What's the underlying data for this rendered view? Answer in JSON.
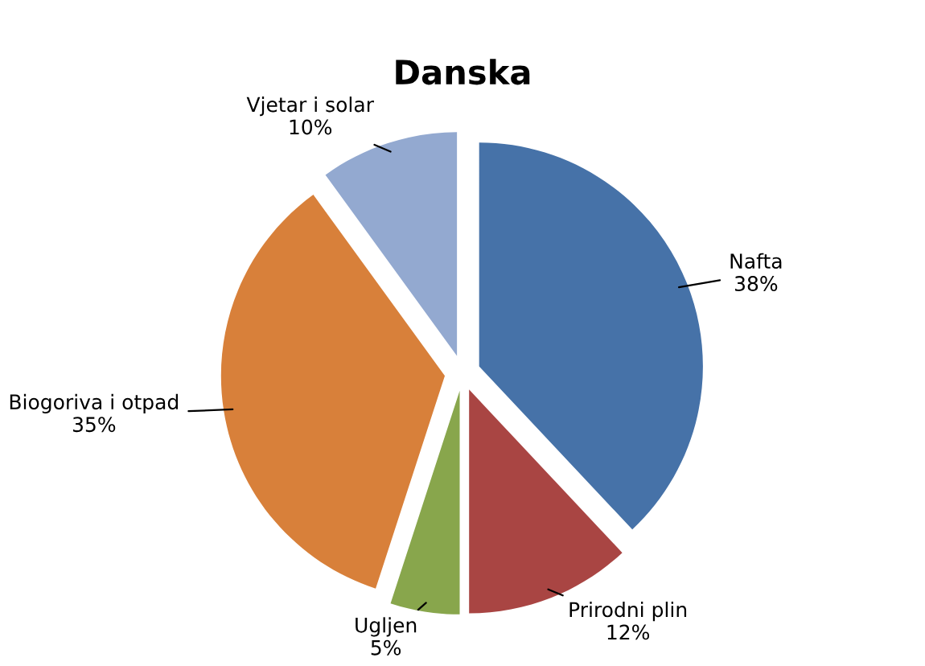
{
  "chart_data": {
    "type": "pie",
    "title": "Danska",
    "categories": [
      "Nafta",
      "Prirodni plin",
      "Ugljen",
      "Biogoriva i otpad",
      "Vjetar i solar"
    ],
    "values": [
      38,
      12,
      5,
      35,
      10
    ],
    "value_labels": [
      "38%",
      "12%",
      "5%",
      "35%",
      "10%"
    ],
    "colors": [
      "#4672a8",
      "#a94543",
      "#88a64c",
      "#d8803a",
      "#93a9d0"
    ]
  }
}
